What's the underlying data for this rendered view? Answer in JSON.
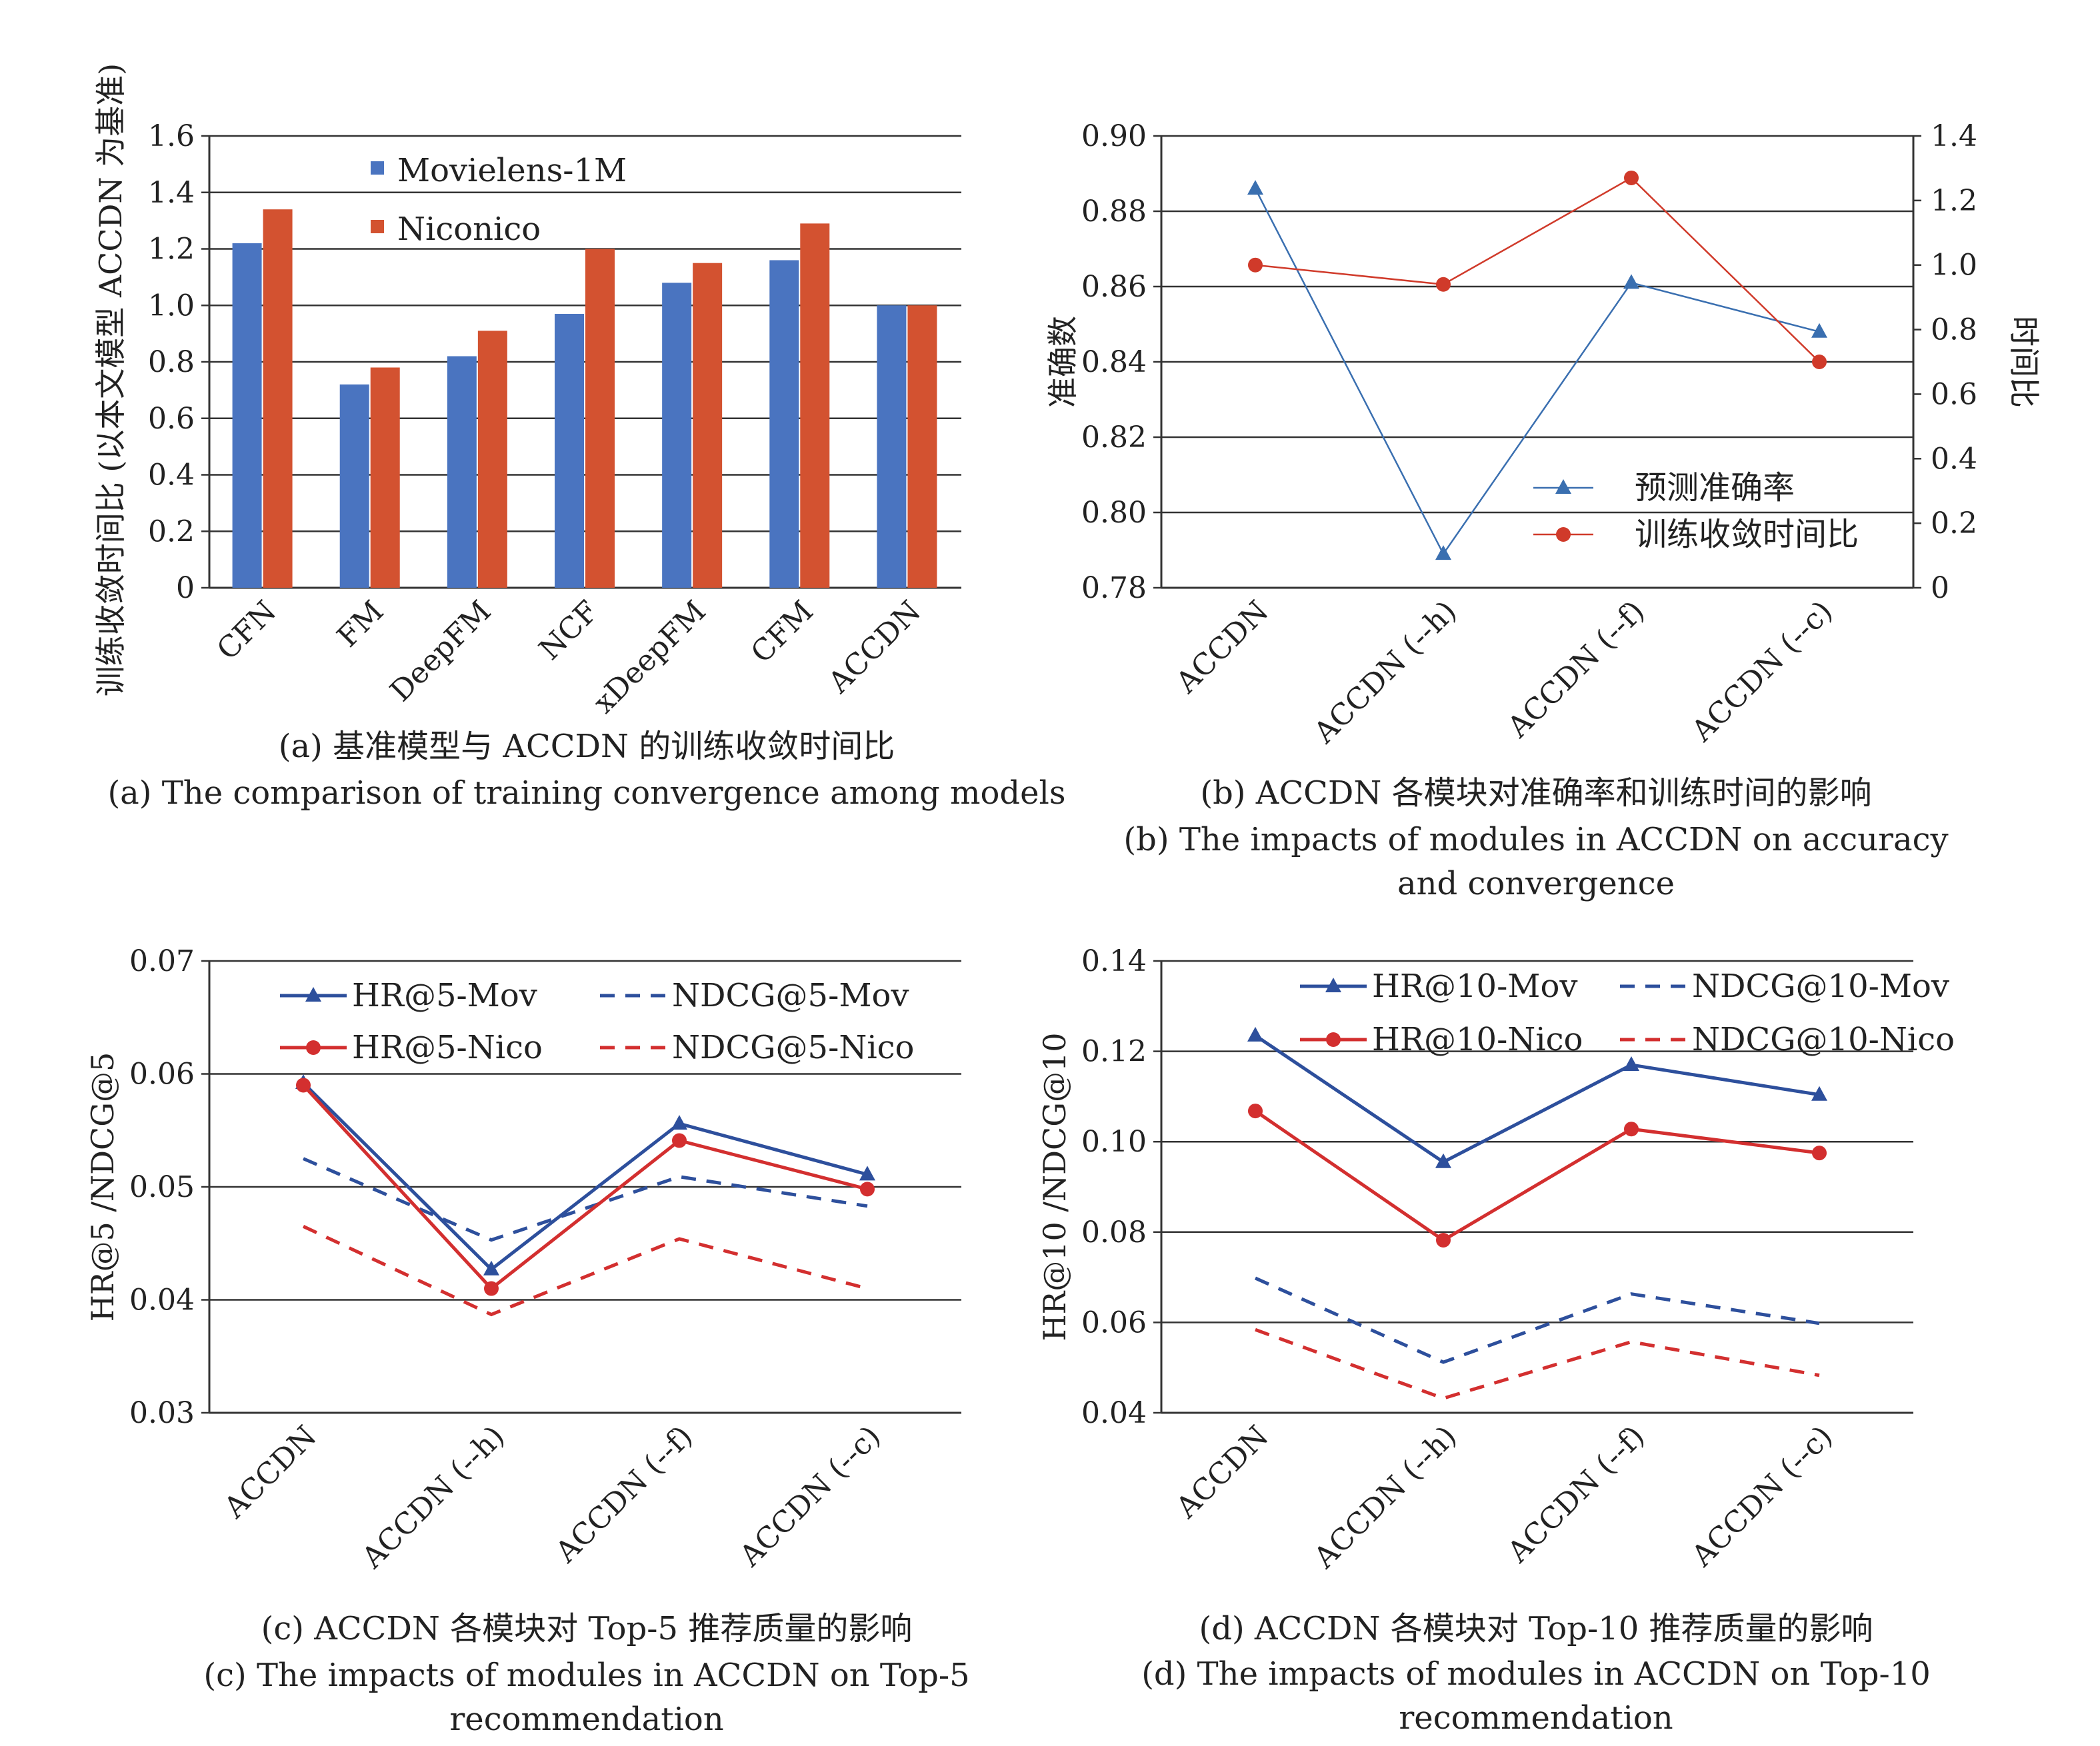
{
  "chart_data": [
    {
      "id": "a",
      "type": "bar",
      "categories": [
        "CFN",
        "FM",
        "DeepFM",
        "NCF",
        "xDeepFM",
        "CFM",
        "ACCDN"
      ],
      "series": [
        {
          "name": "Movielens-1M",
          "values": [
            1.22,
            0.72,
            0.82,
            0.97,
            1.08,
            1.16,
            1.0
          ],
          "color": "#4a74c0"
        },
        {
          "name": "Niconico",
          "values": [
            1.34,
            0.78,
            0.91,
            1.2,
            1.15,
            1.29,
            1.0
          ],
          "color": "#d35230"
        }
      ],
      "ylim": [
        0,
        1.6
      ],
      "yticks": [
        "0",
        "0.2",
        "0.4",
        "0.6",
        "0.8",
        "1.0",
        "1.2",
        "1.4",
        "1.6"
      ],
      "ylabel": "训练收敛时间比 (以本文模型 ACCDN 为基准)",
      "caption_cn": "(a) 基准模型与 ACCDN 的训练收敛时间比",
      "caption_en": [
        "(a) The comparison of training convergence among models"
      ],
      "legend_position": "top"
    },
    {
      "id": "b",
      "type": "line",
      "categories": [
        "ACCDN",
        "ACCDN (--h)",
        "ACCDN (--f)",
        "ACCDN (--c)"
      ],
      "series": [
        {
          "name": "预测准确率",
          "values": [
            0.886,
            0.789,
            0.861,
            0.848
          ],
          "axis": "left",
          "color": "#3a6fb0",
          "marker": "triangle"
        },
        {
          "name": "训练收敛时间比",
          "values": [
            1.0,
            0.94,
            1.27,
            0.7
          ],
          "axis": "right",
          "color": "#d03a2a",
          "marker": "circle"
        }
      ],
      "ylim": [
        0.78,
        0.9
      ],
      "yticks": [
        "0.78",
        "0.80",
        "0.82",
        "0.84",
        "0.86",
        "0.88",
        "0.90"
      ],
      "y2lim": [
        0,
        1.4
      ],
      "y2ticks": [
        "0",
        "0.2",
        "0.4",
        "0.6",
        "0.8",
        "1.0",
        "1.2",
        "1.4"
      ],
      "ylabel": "准确数",
      "y2label": "时间比",
      "caption_cn": "(b) ACCDN 各模块对准确率和训练时间的影响",
      "caption_en": [
        "(b) The impacts of modules in ACCDN on accuracy",
        "and convergence"
      ],
      "legend_position": "bottom-right"
    },
    {
      "id": "c",
      "type": "line",
      "categories": [
        "ACCDN",
        "ACCDN (--h)",
        "ACCDN (--f)",
        "ACCDN (--c)"
      ],
      "series": [
        {
          "name": "HR@5-Mov",
          "values": [
            0.0592,
            0.0427,
            0.0556,
            0.0511
          ],
          "color": "#2d4f9c",
          "dash": false,
          "marker": "triangle"
        },
        {
          "name": "NDCG@5-Mov",
          "values": [
            0.0525,
            0.0453,
            0.0509,
            0.0483
          ],
          "color": "#2d4f9c",
          "dash": true,
          "marker": "none"
        },
        {
          "name": "HR@5-Nico",
          "values": [
            0.059,
            0.041,
            0.0541,
            0.0498
          ],
          "color": "#d32f2f",
          "dash": false,
          "marker": "circle"
        },
        {
          "name": "NDCG@5-Nico",
          "values": [
            0.0465,
            0.0387,
            0.0454,
            0.041
          ],
          "color": "#d32f2f",
          "dash": true,
          "marker": "none"
        }
      ],
      "ylim": [
        0.03,
        0.07
      ],
      "yticks": [
        "0.03",
        "0.04",
        "0.05",
        "0.06",
        "0.07"
      ],
      "ylabel": "HR@5 /NDCG@5",
      "caption_cn": "(c) ACCDN 各模块对 Top-5 推荐质量的影响",
      "caption_en": [
        "(c) The impacts of modules in ACCDN on Top-5",
        "recommendation"
      ],
      "legend_position": "top"
    },
    {
      "id": "d",
      "type": "line",
      "categories": [
        "ACCDN",
        "ACCDN (--h)",
        "ACCDN (--f)",
        "ACCDN (--c)"
      ],
      "series": [
        {
          "name": "HR@10-Mov",
          "values": [
            0.1235,
            0.0955,
            0.117,
            0.1104
          ],
          "color": "#2d4f9c",
          "dash": false,
          "marker": "triangle"
        },
        {
          "name": "NDCG@10-Mov",
          "values": [
            0.0698,
            0.0512,
            0.0663,
            0.0598
          ],
          "color": "#2d4f9c",
          "dash": true,
          "marker": "none"
        },
        {
          "name": "HR@10-Nico",
          "values": [
            0.1068,
            0.0782,
            0.1028,
            0.0975
          ],
          "color": "#d32f2f",
          "dash": false,
          "marker": "circle"
        },
        {
          "name": "NDCG@10-Nico",
          "values": [
            0.0584,
            0.0432,
            0.0557,
            0.0483
          ],
          "color": "#d32f2f",
          "dash": true,
          "marker": "none"
        }
      ],
      "ylim": [
        0.04,
        0.14
      ],
      "yticks": [
        "0.04",
        "0.06",
        "0.08",
        "0.10",
        "0.12",
        "0.14"
      ],
      "ylabel": "HR@10 /NDCG@10",
      "caption_cn": "(d) ACCDN 各模块对 Top-10 推荐质量的影响",
      "caption_en": [
        "(d) The impacts of modules in ACCDN on Top-10",
        "recommendation"
      ],
      "legend_position": "top"
    }
  ]
}
